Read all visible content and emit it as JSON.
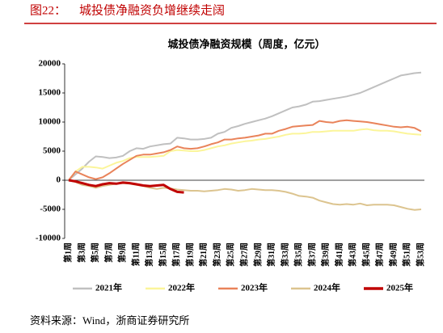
{
  "figure_label": "图22：",
  "header_title": "城投债净融资负增继续走阔",
  "source": "资料来源：Wind，浙商证券研究所",
  "chart_data": {
    "type": "line",
    "title": "城投债净融资规模（周度，亿元）",
    "categories": [
      "第1周",
      null,
      "第3周",
      null,
      "第5周",
      null,
      "第7周",
      null,
      "第9周",
      null,
      "第11周",
      null,
      "第13周",
      null,
      "第15周",
      null,
      "第17周",
      null,
      "第19周",
      null,
      "第21周",
      null,
      "第23周",
      null,
      "第25周",
      null,
      "第27周",
      null,
      "第29周",
      null,
      "第31周",
      null,
      "第33周",
      null,
      "第35周",
      null,
      "第37周",
      null,
      "第39周",
      null,
      "第41周",
      null,
      "第43周",
      null,
      "第45周",
      null,
      "第47周",
      null,
      "第49周",
      null,
      "第51周",
      null,
      "第53周"
    ],
    "series": [
      {
        "name": "2021年",
        "color": "#c0c0c0",
        "values": [
          0,
          1000,
          2000,
          3200,
          4100,
          4000,
          3800,
          3900,
          4200,
          5000,
          5500,
          5400,
          5800,
          6000,
          6200,
          6300,
          7300,
          7200,
          7000,
          7000,
          7100,
          7300,
          8000,
          8300,
          9000,
          9300,
          9700,
          10000,
          10300,
          10600,
          11000,
          11500,
          12000,
          12500,
          12700,
          13000,
          13500,
          13600,
          13800,
          14000,
          14200,
          14400,
          14700,
          15000,
          15500,
          16000,
          16500,
          17000,
          17500,
          18000,
          18200,
          18400,
          18500
        ]
      },
      {
        "name": "2022年",
        "color": "#fbf59a",
        "values": [
          0,
          1500,
          2300,
          2300,
          2200,
          2000,
          2500,
          3000,
          3300,
          3800,
          4000,
          4000,
          4000,
          4100,
          4200,
          5000,
          5200,
          5100,
          5000,
          5000,
          5200,
          5500,
          5800,
          6000,
          6300,
          6500,
          6700,
          6800,
          7000,
          7100,
          7300,
          7500,
          7800,
          8000,
          8000,
          8100,
          8300,
          8300,
          8400,
          8500,
          8500,
          8500,
          8500,
          8700,
          8800,
          8600,
          8500,
          8500,
          8400,
          8200,
          8000,
          7900,
          7800
        ]
      },
      {
        "name": "2023年",
        "color": "#e9835a",
        "values": [
          0,
          1500,
          1000,
          500,
          200,
          500,
          1200,
          2000,
          2800,
          3500,
          4200,
          4400,
          4400,
          4600,
          4800,
          5200,
          5800,
          5500,
          5400,
          5500,
          5800,
          6200,
          6500,
          7000,
          7000,
          7200,
          7300,
          7500,
          7700,
          8000,
          8000,
          8500,
          8800,
          9200,
          9300,
          9400,
          9500,
          10200,
          10000,
          9900,
          10200,
          10300,
          10200,
          10100,
          10000,
          9800,
          9600,
          9400,
          9200,
          9100,
          9200,
          9000,
          8400
        ]
      },
      {
        "name": "2024年",
        "color": "#dcc48f",
        "values": [
          0,
          -300,
          -800,
          -1000,
          -1300,
          -1000,
          -800,
          -600,
          -500,
          -600,
          -800,
          -1000,
          -1300,
          -1500,
          -1300,
          -1400,
          -1600,
          -1700,
          -1800,
          -1800,
          -1900,
          -1800,
          -1700,
          -1500,
          -1600,
          -1800,
          -1700,
          -1500,
          -1600,
          -1700,
          -1700,
          -1800,
          -2000,
          -2300,
          -2700,
          -2800,
          -3000,
          -3500,
          -3800,
          -4100,
          -4200,
          -4100,
          -4200,
          -4000,
          -4300,
          -4200,
          -4200,
          -4200,
          -4300,
          -4600,
          -4900,
          -5100,
          -5000
        ]
      },
      {
        "name": "2025年",
        "color": "#c00000",
        "values": [
          0,
          -200,
          -500,
          -800,
          -1000,
          -700,
          -500,
          -600,
          -400,
          -500,
          -700,
          -900,
          -1000,
          -900,
          -800,
          -1500,
          -2000,
          -2100,
          null,
          null,
          null,
          null,
          null,
          null,
          null,
          null,
          null,
          null,
          null,
          null,
          null,
          null,
          null,
          null,
          null,
          null,
          null,
          null,
          null,
          null,
          null,
          null,
          null,
          null,
          null,
          null,
          null,
          null,
          null,
          null,
          null,
          null,
          null
        ]
      }
    ],
    "ylim": [
      -10000,
      20000
    ],
    "yticks": [
      -10000,
      -5000,
      0,
      5000,
      10000,
      15000,
      20000
    ],
    "legend": "bottom"
  }
}
